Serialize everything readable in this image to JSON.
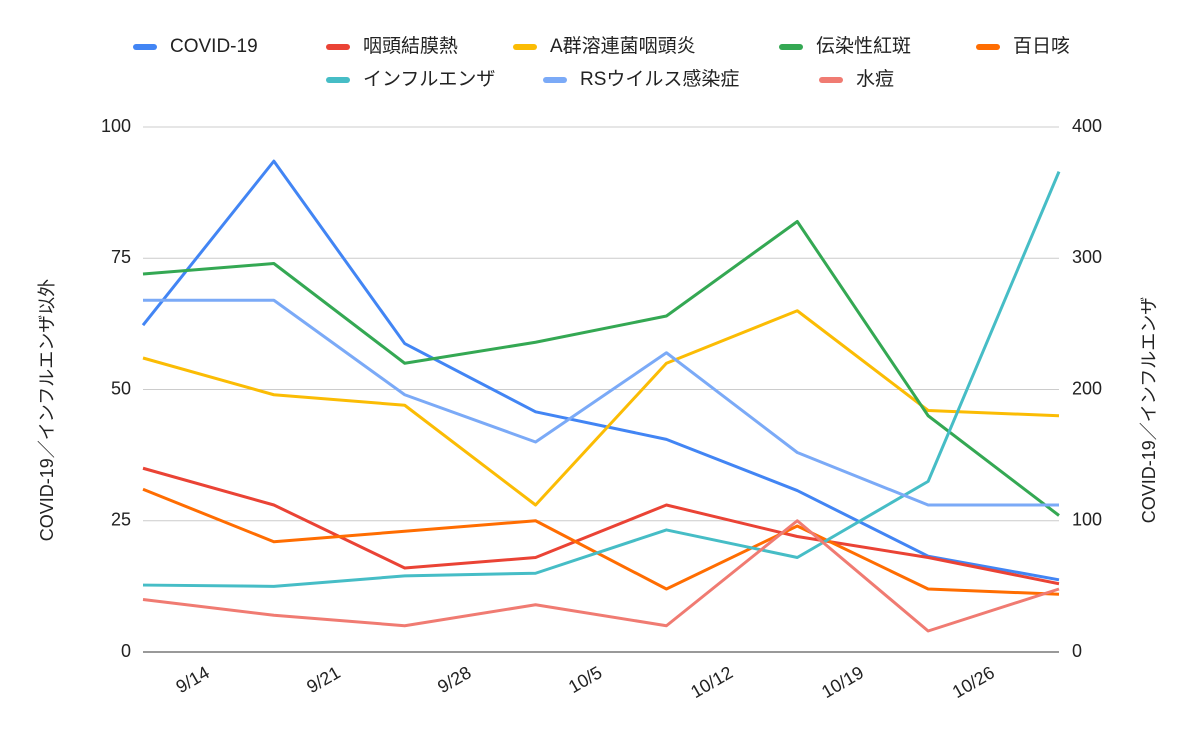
{
  "chart_data": {
    "type": "line",
    "categories": [
      "9/14",
      "9/21",
      "9/28",
      "10/5",
      "10/12",
      "10/19",
      "10/26",
      null
    ],
    "series": [
      {
        "name": "COVID-19",
        "color": "#4285f4",
        "axis": "y2",
        "values": [
          249,
          374,
          235,
          183,
          162,
          123,
          73,
          55
        ]
      },
      {
        "name": "咽頭結膜熱",
        "color": "#ea4335",
        "values": [
          35,
          28,
          16,
          18,
          28,
          22,
          18,
          13
        ]
      },
      {
        "name": "A群溶連菌咽頭炎",
        "color": "#fbbc04",
        "values": [
          56,
          49,
          47,
          28,
          55,
          65,
          46,
          45
        ]
      },
      {
        "name": "伝染性紅斑",
        "color": "#34a853",
        "values": [
          72,
          74,
          55,
          59,
          64,
          82,
          45,
          26
        ]
      },
      {
        "name": "百日咳",
        "color": "#ff6d01",
        "values": [
          31,
          21,
          23,
          25,
          12,
          24,
          12,
          11
        ]
      },
      {
        "name": "インフルエンザ",
        "color": "#46bdc6",
        "axis": "y2",
        "values": [
          51,
          50,
          58,
          60,
          93,
          72,
          130,
          366
        ]
      },
      {
        "name": "RSウイルス感染症",
        "color": "#7baaf7",
        "values": [
          67,
          67,
          49,
          40,
          57,
          38,
          28,
          28
        ]
      },
      {
        "name": "水痘",
        "color": "#f07b72",
        "values": [
          10,
          7,
          5,
          9,
          5,
          25,
          4,
          12
        ]
      }
    ],
    "y_label": "COVID-19／インフルエンザ以外",
    "y2_label": "COVID-19／インフルエンザ",
    "ylim": [
      0,
      100
    ],
    "yticks": [
      0,
      25,
      50,
      75,
      100
    ],
    "y2lim": [
      0,
      400
    ],
    "y2ticks": [
      0,
      100,
      200,
      300,
      400
    ],
    "grid": true,
    "legend": "top"
  }
}
